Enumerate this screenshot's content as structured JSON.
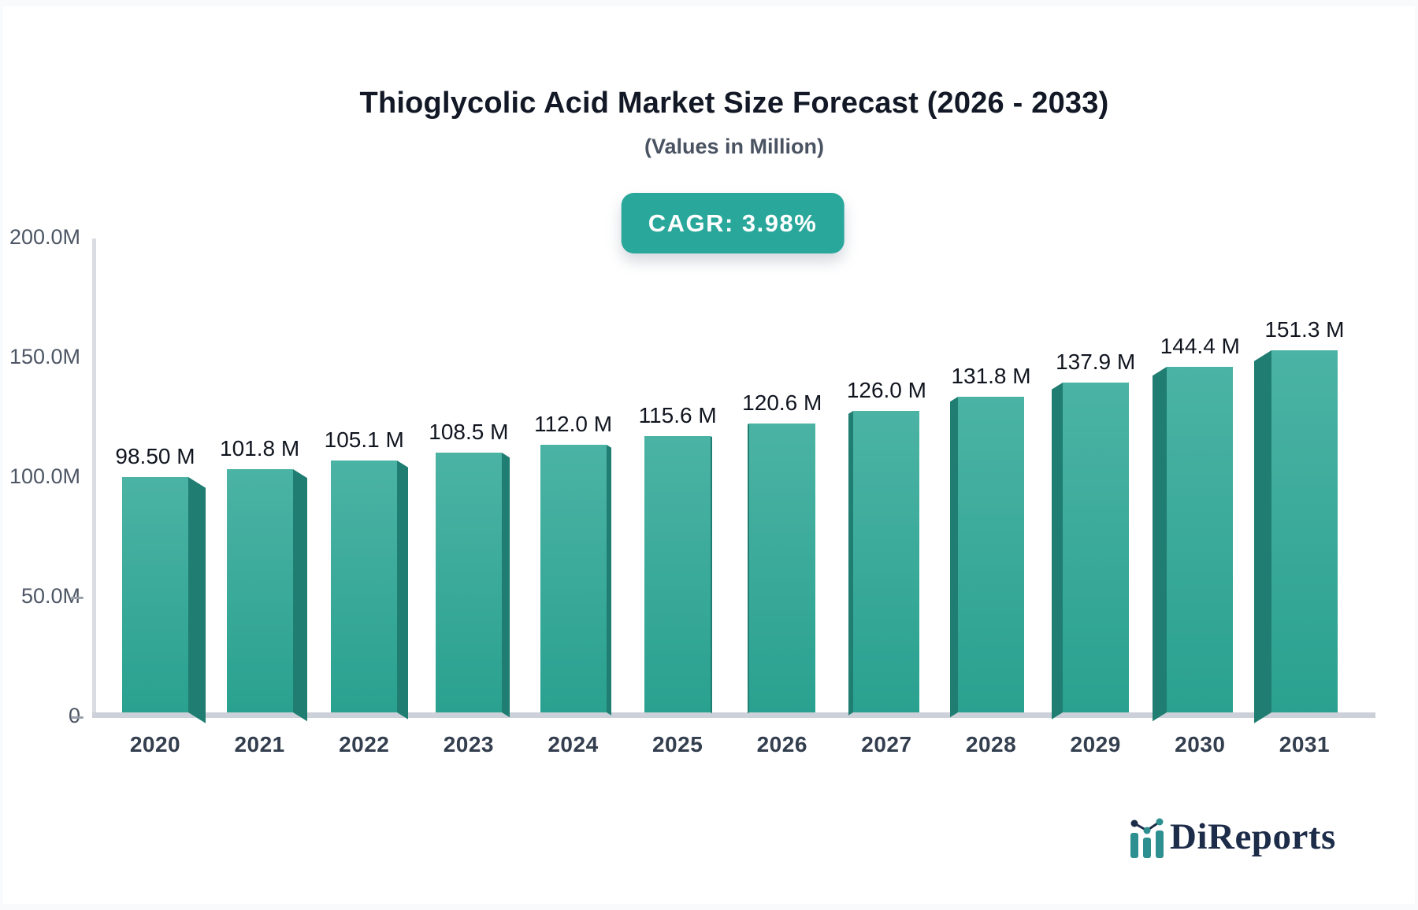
{
  "header": {
    "title": "Thioglycolic Acid Market Size Forecast (2026 - 2033)",
    "subtitle": "(Values in Million)",
    "cagr_badge": "CAGR: 3.98%"
  },
  "chart_data": {
    "type": "bar",
    "title": "Thioglycolic Acid Market Size Forecast (2026 - 2033)",
    "subtitle": "(Values in Million)",
    "unit": "Million",
    "cagr_percent": 3.98,
    "categories": [
      "2020",
      "2021",
      "2022",
      "2023",
      "2024",
      "2025",
      "2026",
      "2027",
      "2028",
      "2029",
      "2030",
      "2031"
    ],
    "values": [
      98.5,
      101.8,
      105.1,
      108.5,
      112.0,
      115.6,
      120.6,
      126.0,
      131.8,
      137.9,
      144.4,
      151.3
    ],
    "value_labels": [
      "98.50 M",
      "101.8 M",
      "105.1 M",
      "108.5 M",
      "112.0 M",
      "115.6 M",
      "120.6 M",
      "126.0 M",
      "131.8 M",
      "137.9 M",
      "144.4 M",
      "151.3 M"
    ],
    "y_tick_labels": [
      "200.0M",
      "150.0M",
      "100.0M",
      "50.0M",
      "0"
    ],
    "y_tick_values": [
      200,
      150,
      100,
      50,
      0
    ],
    "ylim": [
      0,
      200
    ],
    "xlabel": "",
    "ylabel": "",
    "grid": false,
    "legend": "none",
    "colors": {
      "bar_top": "#4bb3a4",
      "bar_bottom": "#2aa190",
      "bar_side": "#1f7d71",
      "badge": "#2aa79b",
      "axis_line": "#d9dce2",
      "baseline": "#ccd0d8",
      "title_text": "#121826",
      "subtitle_text": "#4a5362",
      "tick_text": "#4d5664"
    }
  },
  "branding": {
    "logo_text": "DiReports"
  }
}
